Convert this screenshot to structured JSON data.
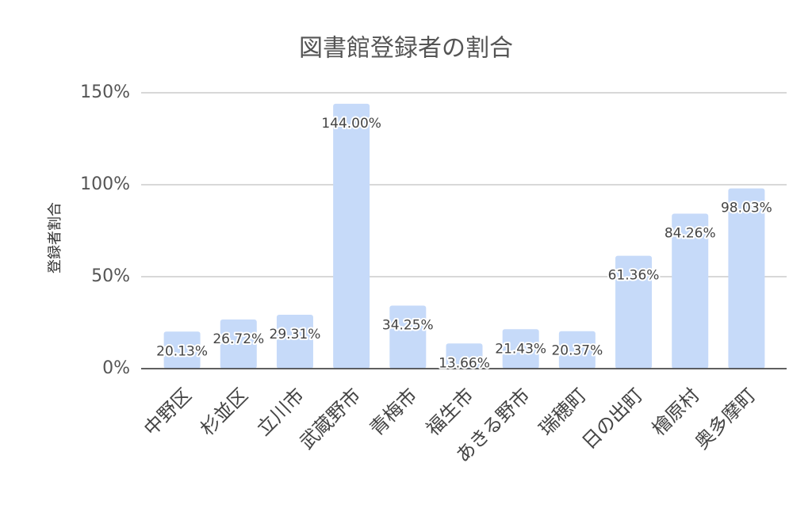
{
  "chart_data": {
    "type": "bar",
    "title": "図書館登録者の割合",
    "y_label": "登録者割合",
    "categories": [
      "中野区",
      "杉並区",
      "立川市",
      "武蔵野市",
      "青梅市",
      "福生市",
      "あきる野市",
      "瑞穂町",
      "日の出町",
      "檜原村",
      "奥多摩町"
    ],
    "values": [
      20.13,
      26.72,
      29.31,
      144.0,
      34.25,
      13.66,
      21.43,
      20.37,
      61.36,
      84.26,
      98.03
    ],
    "value_labels": [
      "20.13%",
      "26.72%",
      "29.31%",
      "144.00%",
      "34.25%",
      "13.66%",
      "21.43%",
      "20.37%",
      "61.36%",
      "84.26%",
      "98.03%"
    ],
    "color": "#c6daf9",
    "ylim": [
      0,
      150
    ],
    "yticks": [
      {
        "value": 0,
        "label": "0%"
      },
      {
        "value": 50,
        "label": "50%"
      },
      {
        "value": 100,
        "label": "100%"
      },
      {
        "value": 150,
        "label": "150%"
      }
    ],
    "grid": true
  }
}
